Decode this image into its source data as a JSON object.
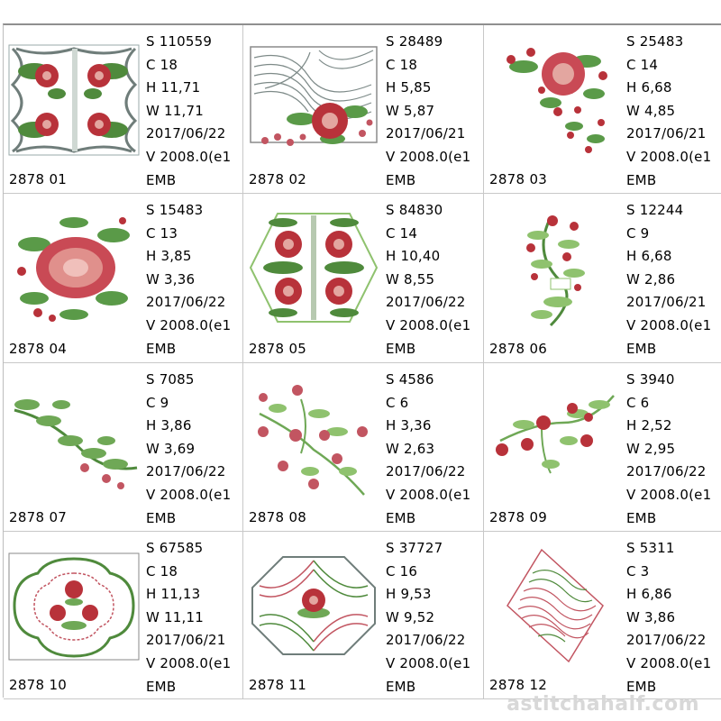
{
  "designs": [
    {
      "code": "2878  01",
      "s": "S  110559",
      "c": "C  18",
      "h": "H  11,71",
      "w": "W  11,71",
      "date": "2017/06/22",
      "v": "V  2008.0(e1",
      "fmt": "EMB",
      "icon": "rose-square-tile-icon"
    },
    {
      "code": "2878  02",
      "s": "S  28489",
      "c": "C  18",
      "h": "H  5,85",
      "w": "W  5,87",
      "date": "2017/06/21",
      "v": "V  2008.0(e1",
      "fmt": "EMB",
      "icon": "rose-swirl-panel-icon"
    },
    {
      "code": "2878  03",
      "s": "S  25483",
      "c": "C  14",
      "h": "H  6,68",
      "w": "W  4,85",
      "date": "2017/06/21",
      "v": "V  2008.0(e1",
      "fmt": "EMB",
      "icon": "rose-corner-spray-icon"
    },
    {
      "code": "2878  04",
      "s": "S  15483",
      "c": "C  13",
      "h": "H  3,85",
      "w": "W  3,36",
      "date": "2017/06/22",
      "v": "V  2008.0(e1",
      "fmt": "EMB",
      "icon": "large-rose-bloom-icon"
    },
    {
      "code": "2878  05",
      "s": "S  84830",
      "c": "C  14",
      "h": "H  10,40",
      "w": "W  8,55",
      "date": "2017/06/22",
      "v": "V  2008.0(e1",
      "fmt": "EMB",
      "icon": "four-rose-hexagon-icon"
    },
    {
      "code": "2878  06",
      "s": "S  12244",
      "c": "C  9",
      "h": "H  6,68",
      "w": "W  2,86",
      "date": "2017/06/21",
      "v": "V  2008.0(e1",
      "fmt": "EMB",
      "icon": "rose-vine-column-icon"
    },
    {
      "code": "2878  07",
      "s": "S  7085",
      "c": "C  9",
      "h": "H  3,86",
      "w": "W  3,69",
      "date": "2017/06/22",
      "v": "V  2008.0(e1",
      "fmt": "EMB",
      "icon": "leaf-branch-icon"
    },
    {
      "code": "2878  08",
      "s": "S  4586",
      "c": "C  6",
      "h": "H  3,36",
      "w": "W  2,63",
      "date": "2017/06/22",
      "v": "V  2008.0(e1",
      "fmt": "EMB",
      "icon": "small-rose-branch-icon"
    },
    {
      "code": "2878  09",
      "s": "S  3940",
      "c": "C  6",
      "h": "H  2,52",
      "w": "W  2,95",
      "date": "2017/06/22",
      "v": "V  2008.0(e1",
      "fmt": "EMB",
      "icon": "rose-spray-icon"
    },
    {
      "code": "2878  10",
      "s": "S  67585",
      "c": "C  18",
      "h": "H  11,13",
      "w": "W  11,11",
      "date": "2017/06/21",
      "v": "V  2008.0(e1",
      "fmt": "EMB",
      "icon": "lace-medallion-icon"
    },
    {
      "code": "2878  11",
      "s": "S  37727",
      "c": "C  16",
      "h": "H  9,53",
      "w": "W  9,52",
      "date": "2017/06/22",
      "v": "V  2008.0(e1",
      "fmt": "EMB",
      "icon": "lace-octagon-rose-icon"
    },
    {
      "code": "2878  12",
      "s": "S  5311",
      "c": "C  3",
      "h": "H  6,86",
      "w": "W  3,86",
      "date": "2017/06/22",
      "v": "V  2008.0(e1",
      "fmt": "EMB",
      "icon": "wave-diamond-icon"
    }
  ],
  "watermark": "astitchahalf.com",
  "colors": {
    "rose": "#b8323a",
    "rose_light": "#d98a86",
    "leaf": "#4f8a3c",
    "leaf_light": "#8fc26e",
    "thread_gray": "#6f7d7a",
    "watermark": "#d8d8d8"
  }
}
